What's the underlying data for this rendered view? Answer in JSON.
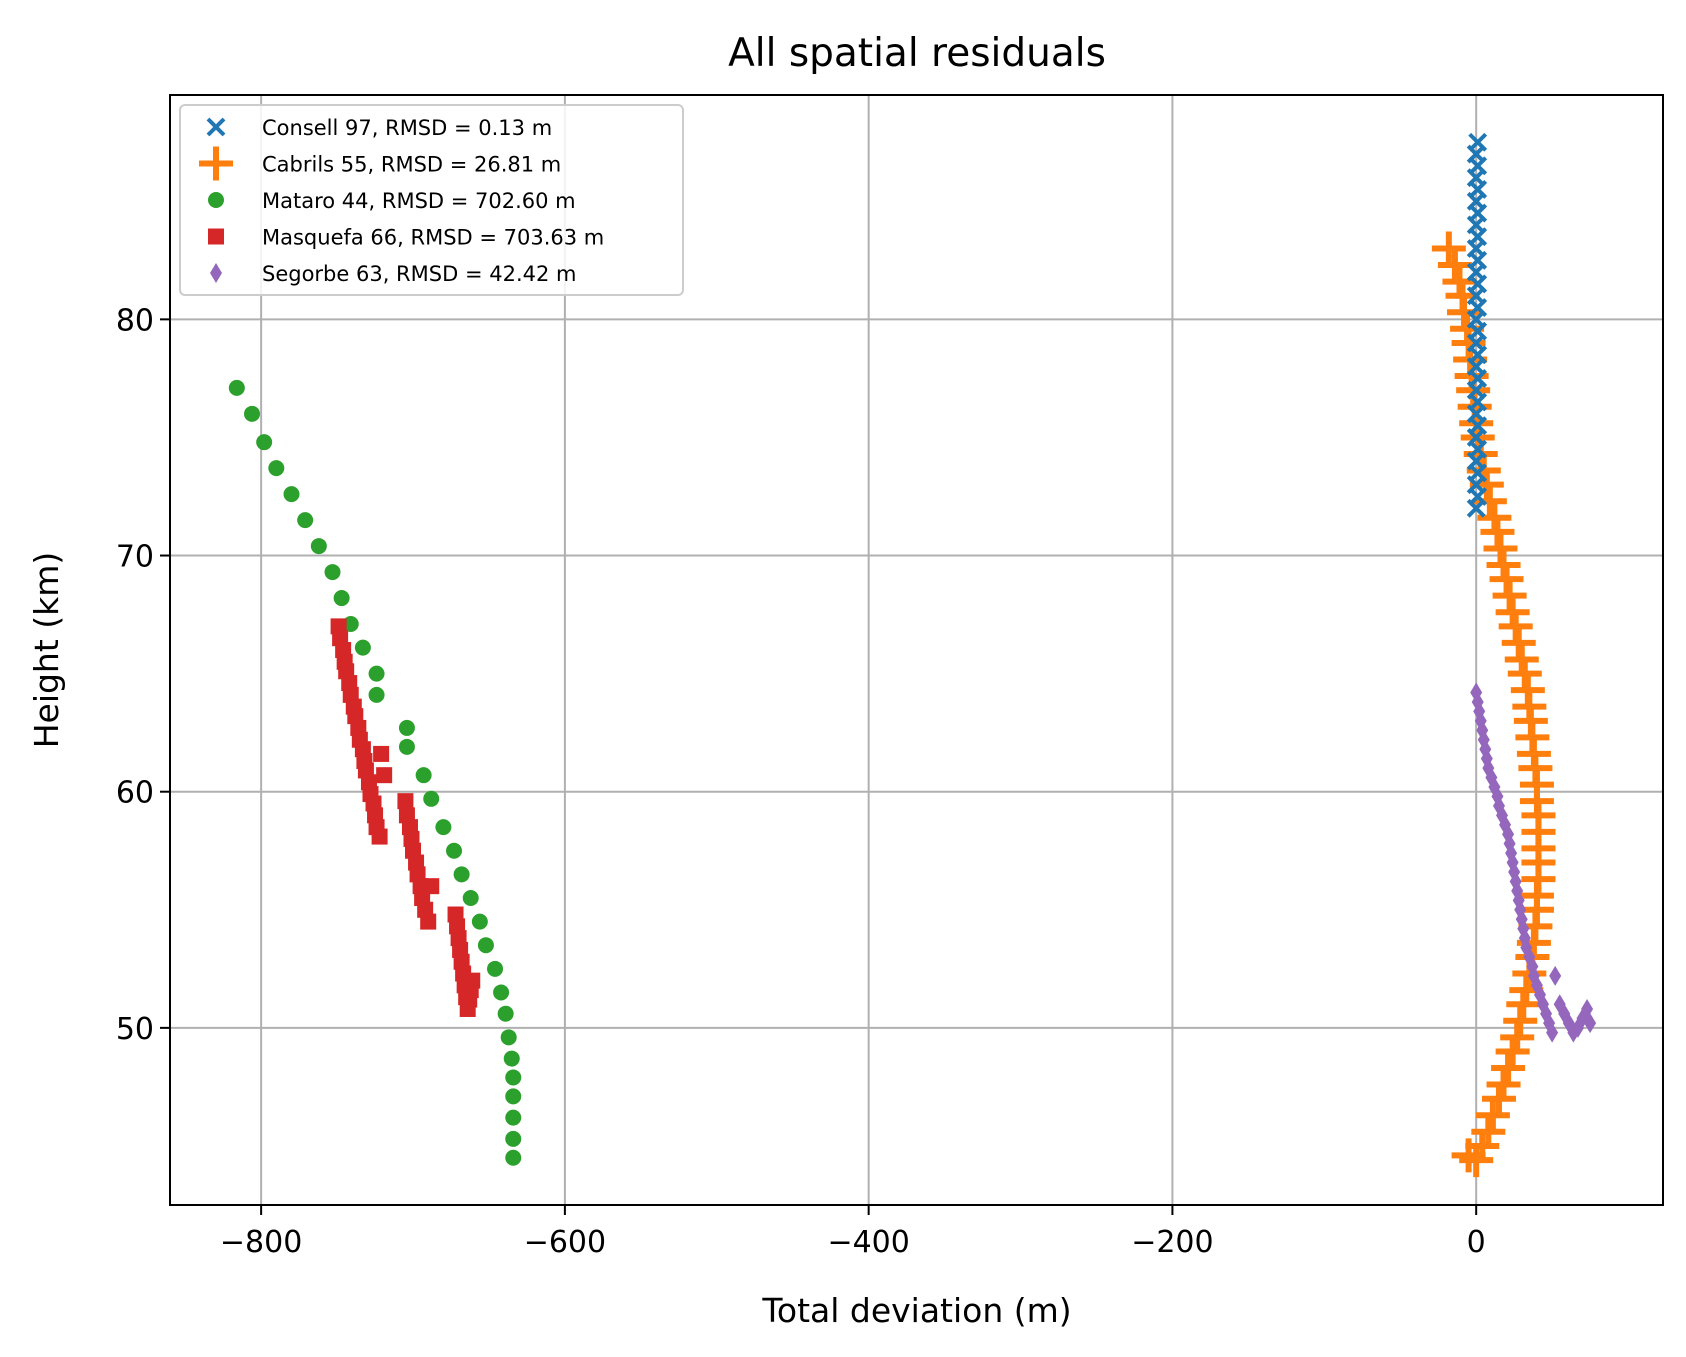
{
  "chart_data": {
    "type": "scatter",
    "title": "All spatial residuals",
    "xlabel": "Total deviation (m)",
    "ylabel": "Height (km)",
    "xlim": [
      -860,
      123
    ],
    "ylim": [
      42.5,
      89.5
    ],
    "xticks": [
      -800,
      -600,
      -400,
      -200,
      0
    ],
    "xtick_labels": [
      "−800",
      "−600",
      "−400",
      "−200",
      "0"
    ],
    "yticks": [
      50,
      60,
      70,
      80
    ],
    "ytick_labels": [
      "50",
      "60",
      "70",
      "80"
    ],
    "grid": true,
    "legend_position": "upper left",
    "series": [
      {
        "name": "Consell 97, RMSD = 0.13 m",
        "marker": "x",
        "color": "#1f77b4",
        "x": [
          0,
          1,
          0,
          1,
          0,
          1,
          0,
          1,
          0,
          1,
          0,
          1,
          0,
          1,
          0,
          1,
          0,
          1,
          0,
          1,
          0,
          1,
          0,
          1,
          0,
          1,
          0,
          1,
          0,
          1,
          0,
          1
        ],
        "y": [
          72.0,
          72.5,
          73.0,
          73.5,
          74.0,
          74.5,
          75.0,
          75.5,
          76.0,
          76.5,
          77.0,
          77.5,
          78.0,
          78.5,
          79.0,
          79.5,
          80.0,
          80.5,
          81.0,
          81.5,
          82.0,
          82.5,
          83.0,
          83.5,
          84.0,
          84.5,
          85.0,
          85.5,
          86.0,
          86.5,
          87.0,
          87.5
        ]
      },
      {
        "name": "Cabrils 55, RMSD = 26.81 m",
        "marker": "+",
        "color": "#ff7f0e",
        "x": [
          -18,
          -14,
          -11,
          -9,
          -8,
          -6,
          -5,
          -4,
          -3,
          -2,
          -1,
          0,
          1,
          3,
          5,
          7,
          9,
          12,
          14,
          16,
          18,
          20,
          22,
          24,
          26,
          28,
          30,
          32,
          34,
          35,
          36,
          37,
          38,
          39,
          40,
          40,
          41,
          41,
          41,
          41,
          41,
          40,
          40,
          39,
          38,
          37,
          35,
          33,
          31,
          29,
          27,
          24,
          21,
          18,
          15,
          11,
          8,
          4,
          0,
          -5
        ],
        "y": [
          83.0,
          82.3,
          81.6,
          81.0,
          80.3,
          79.6,
          79.0,
          78.3,
          77.6,
          77.0,
          76.3,
          75.6,
          75.0,
          74.3,
          73.6,
          73.0,
          72.3,
          71.6,
          71.0,
          70.3,
          69.6,
          69.0,
          68.3,
          67.6,
          67.0,
          66.3,
          65.6,
          65.0,
          64.3,
          63.6,
          63.0,
          62.3,
          61.6,
          61.0,
          60.3,
          59.6,
          59.0,
          58.3,
          57.6,
          57.0,
          56.3,
          55.6,
          55.0,
          54.3,
          53.6,
          53.0,
          52.3,
          51.6,
          51.0,
          50.3,
          49.6,
          49.0,
          48.3,
          47.6,
          47.0,
          46.3,
          45.6,
          45.0,
          44.4,
          44.6
        ]
      },
      {
        "name": "Mataro 44, RMSD = 702.60 m",
        "marker": "o",
        "color": "#2ca02c",
        "x": [
          -816,
          -806,
          -798,
          -790,
          -780,
          -771,
          -762,
          -753,
          -747,
          -741,
          -733,
          -724,
          -724,
          -704,
          -704,
          -693,
          -688,
          -680,
          -673,
          -668,
          -662,
          -656,
          -652,
          -646,
          -642,
          -639,
          -637,
          -635,
          -634,
          -634,
          -634,
          -634,
          -634
        ],
        "y": [
          77.1,
          76.0,
          74.8,
          73.7,
          72.6,
          71.5,
          70.4,
          69.3,
          68.2,
          67.1,
          66.1,
          65.0,
          64.1,
          62.7,
          61.9,
          60.7,
          59.7,
          58.5,
          57.5,
          56.5,
          55.5,
          54.5,
          53.5,
          52.5,
          51.5,
          50.6,
          49.6,
          48.7,
          47.9,
          47.1,
          46.2,
          45.3,
          44.5
        ]
      },
      {
        "name": "Masquefa 66, RMSD = 703.63 m",
        "marker": "s",
        "color": "#d62728",
        "x": [
          -749,
          -748,
          -746,
          -745,
          -744,
          -742,
          -741,
          -739,
          -738,
          -736,
          -735,
          -733,
          -732,
          -731,
          -729,
          -728,
          -726,
          -725,
          -724,
          -722,
          -721,
          -719,
          -705,
          -704,
          -702,
          -701,
          -700,
          -698,
          -697,
          -695,
          -694,
          -692,
          -690,
          -688,
          -672,
          -671,
          -670,
          -669,
          -668,
          -667,
          -666,
          -665,
          -664,
          -663,
          -662,
          -661
        ],
        "y": [
          67.0,
          66.5,
          66.0,
          65.5,
          65.1,
          64.6,
          64.1,
          63.6,
          63.2,
          62.7,
          62.2,
          61.8,
          61.3,
          60.9,
          60.4,
          59.9,
          59.5,
          59.0,
          58.5,
          58.1,
          61.6,
          60.7,
          59.6,
          59.0,
          58.5,
          58.0,
          57.5,
          57.0,
          56.5,
          56.0,
          55.5,
          55.0,
          54.5,
          56.0,
          54.8,
          54.3,
          53.8,
          53.3,
          52.8,
          52.3,
          51.8,
          51.3,
          50.8,
          51.2,
          51.6,
          52.0
        ]
      },
      {
        "name": "Segorbe 63, RMSD = 42.42 m",
        "marker": "d",
        "color": "#9467bd",
        "x": [
          0,
          1,
          2,
          3,
          4,
          5,
          6,
          7,
          8,
          10,
          12,
          14,
          15,
          17,
          19,
          21,
          22,
          23,
          24,
          25,
          26,
          27,
          28,
          29,
          30,
          31,
          32,
          33,
          35,
          37,
          38,
          40,
          42,
          44,
          46,
          48,
          50,
          52,
          55,
          58,
          61,
          64,
          67,
          70,
          73,
          75
        ],
        "y": [
          64.2,
          63.8,
          63.4,
          63.0,
          62.6,
          62.2,
          61.8,
          61.4,
          61.0,
          60.6,
          60.2,
          59.8,
          59.4,
          59.0,
          58.6,
          58.2,
          57.8,
          57.4,
          57.0,
          56.6,
          56.2,
          55.8,
          55.4,
          55.0,
          54.6,
          54.2,
          53.8,
          53.4,
          53.0,
          52.6,
          52.2,
          51.8,
          51.4,
          51.0,
          50.6,
          50.2,
          49.8,
          52.2,
          51.0,
          50.6,
          50.2,
          49.8,
          50.0,
          50.4,
          50.8,
          50.2
        ]
      }
    ]
  }
}
